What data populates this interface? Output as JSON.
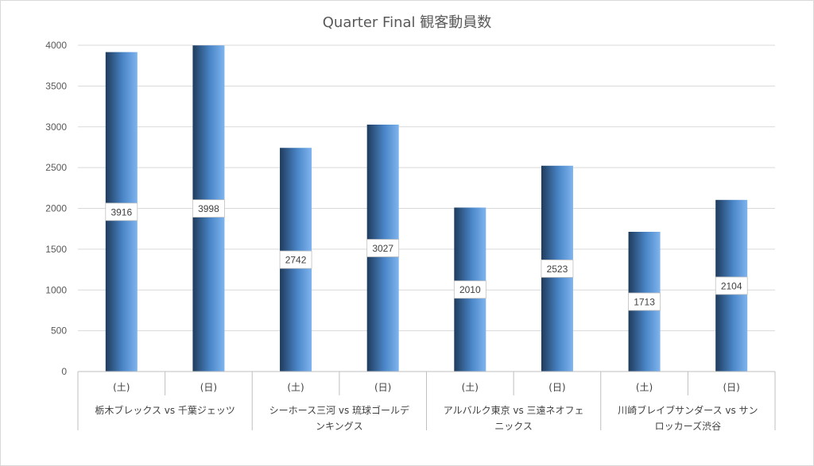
{
  "chart_data": {
    "type": "bar",
    "title": "Quarter Final 観客動員数",
    "xlabel": "",
    "ylabel": "",
    "ylim": [
      0,
      4000
    ],
    "yticks": [
      0,
      500,
      1000,
      1500,
      2000,
      2500,
      3000,
      3500,
      4000
    ],
    "grid": true,
    "legend": "none",
    "groups": [
      {
        "label_lines": [
          "栃木ブレックス vs 千葉ジェッツ"
        ],
        "days": [
          "(土)",
          "(日)"
        ],
        "values": [
          3916,
          3998
        ]
      },
      {
        "label_lines": [
          "シーホース三河 vs 琉球ゴールデ",
          "ンキングス"
        ],
        "days": [
          "(土)",
          "(日)"
        ],
        "values": [
          2742,
          3027
        ]
      },
      {
        "label_lines": [
          "アルバルク東京 vs 三遠ネオフェ",
          "ニックス"
        ],
        "days": [
          "(土)",
          "(日)"
        ],
        "values": [
          2010,
          2523
        ]
      },
      {
        "label_lines": [
          "川崎ブレイブサンダース vs サン",
          "ロッカーズ渋谷"
        ],
        "days": [
          "(土)",
          "(日)"
        ],
        "values": [
          1713,
          2104
        ]
      }
    ],
    "colors": {
      "bar_dark": "#1f3b5c",
      "bar_mid": "#4a86c8",
      "bar_light": "#7fb4ee",
      "grid": "#d9d9d9",
      "axis": "#bfbfbf"
    }
  }
}
